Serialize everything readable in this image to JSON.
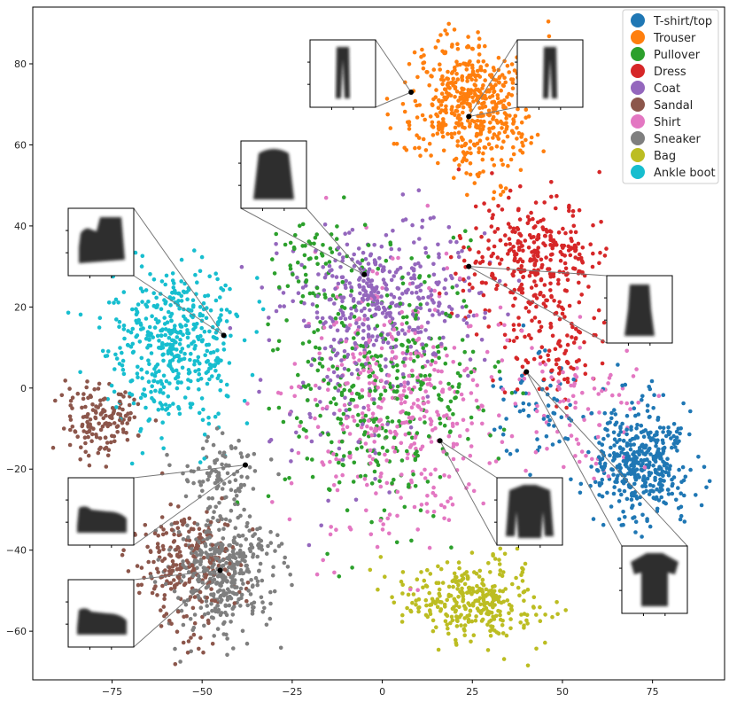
{
  "chart_data": {
    "type": "scatter",
    "title": "",
    "xlabel": "",
    "ylabel": "",
    "xlim": [
      -97,
      95
    ],
    "ylim": [
      -72,
      94
    ],
    "xticks": [
      -75,
      -50,
      -25,
      0,
      25,
      50,
      75
    ],
    "xtick_labels": [
      "−75",
      "−50",
      "−25",
      "0",
      "25",
      "50",
      "75"
    ],
    "yticks": [
      -60,
      -40,
      -20,
      0,
      20,
      40,
      60,
      80
    ],
    "ytick_labels": [
      "−60",
      "−40",
      "−20",
      "0",
      "20",
      "40",
      "60",
      "80"
    ],
    "grid": false,
    "legend_position": "top-right",
    "series": [
      {
        "name": "T-shirt/top",
        "color": "#1f77b4",
        "clusters": [
          {
            "center": [
              72,
              -18
            ],
            "spread": [
              8,
              8
            ],
            "n": 420
          },
          {
            "center": [
              42,
              -5
            ],
            "spread": [
              8,
              8
            ],
            "n": 60
          }
        ]
      },
      {
        "name": "Trouser",
        "color": "#ff7f0e",
        "clusters": [
          {
            "center": [
              25,
              70
            ],
            "spread": [
              10,
              10
            ],
            "n": 520
          }
        ]
      },
      {
        "name": "Pullover",
        "color": "#2ca02c",
        "clusters": [
          {
            "center": [
              0,
              0
            ],
            "spread": [
              16,
              18
            ],
            "n": 380
          },
          {
            "center": [
              -20,
              30
            ],
            "spread": [
              6,
              8
            ],
            "n": 60
          }
        ]
      },
      {
        "name": "Dress",
        "color": "#d62728",
        "clusters": [
          {
            "center": [
              42,
              32
            ],
            "spread": [
              12,
              9
            ],
            "n": 330
          },
          {
            "center": [
              48,
              10
            ],
            "spread": [
              8,
              8
            ],
            "n": 100
          }
        ]
      },
      {
        "name": "Coat",
        "color": "#9467bd",
        "clusters": [
          {
            "center": [
              0,
              22
            ],
            "spread": [
              16,
              10
            ],
            "n": 380
          },
          {
            "center": [
              -10,
              0
            ],
            "spread": [
              10,
              15
            ],
            "n": 100
          }
        ]
      },
      {
        "name": "Sandal",
        "color": "#8c564b",
        "clusters": [
          {
            "center": [
              -78,
              -8
            ],
            "spread": [
              6,
              5
            ],
            "n": 150
          },
          {
            "center": [
              -55,
              -44
            ],
            "spread": [
              8,
              9
            ],
            "n": 250
          }
        ]
      },
      {
        "name": "Shirt",
        "color": "#e377c2",
        "clusters": [
          {
            "center": [
              5,
              -5
            ],
            "spread": [
              16,
              18
            ],
            "n": 420
          },
          {
            "center": [
              55,
              -5
            ],
            "spread": [
              10,
              10
            ],
            "n": 80
          }
        ]
      },
      {
        "name": "Sneaker",
        "color": "#7f7f7f",
        "clusters": [
          {
            "center": [
              -44,
              -45
            ],
            "spread": [
              8,
              9
            ],
            "n": 420
          },
          {
            "center": [
              -45,
              -20
            ],
            "spread": [
              8,
              5
            ],
            "n": 90
          }
        ]
      },
      {
        "name": "Bag",
        "color": "#bcbd22",
        "clusters": [
          {
            "center": [
              25,
              -52
            ],
            "spread": [
              12,
              6
            ],
            "n": 330
          }
        ]
      },
      {
        "name": "Ankle boot",
        "color": "#17becf",
        "clusters": [
          {
            "center": [
              -58,
              10
            ],
            "spread": [
              10,
              11
            ],
            "n": 470
          }
        ]
      }
    ],
    "annotations": [
      {
        "label": "trouser thumbnail",
        "point": [
          8,
          73
        ],
        "item": "trouser"
      },
      {
        "label": "trouser thumbnail",
        "point": [
          24,
          67
        ],
        "item": "trouser"
      },
      {
        "label": "coat thumbnail",
        "point": [
          -5,
          28
        ],
        "item": "coat"
      },
      {
        "label": "dress thumbnail",
        "point": [
          24,
          30
        ],
        "item": "dress"
      },
      {
        "label": "ankle boot thumbnail",
        "point": [
          -44,
          13
        ],
        "item": "boot"
      },
      {
        "label": "sneaker thumbnail",
        "point": [
          -38,
          -19
        ],
        "item": "shoe"
      },
      {
        "label": "sneaker thumbnail",
        "point": [
          -45,
          -45
        ],
        "item": "shoe"
      },
      {
        "label": "pullover thumbnail",
        "point": [
          16,
          -13
        ],
        "item": "sweater"
      },
      {
        "label": "t-shirt thumbnail",
        "point": [
          40,
          4
        ],
        "item": "tshirt"
      }
    ]
  }
}
